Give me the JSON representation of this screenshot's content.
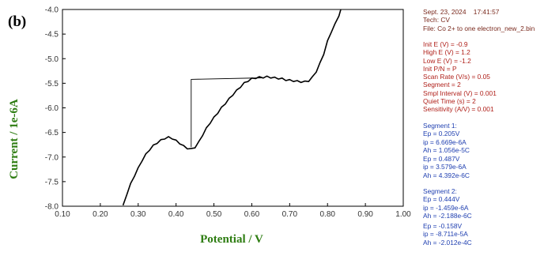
{
  "panel_label": "(b)",
  "colors": {
    "axis_label": "#2e7d12",
    "panel_label": "#000000",
    "tick_text": "#333333",
    "header_text": "#7a2a1e",
    "params_text": "#b0201a",
    "segment_text": "#1f3fb0",
    "trace": "#000000"
  },
  "info": {
    "header": [
      "Sept. 23, 2024    17:41:57",
      "Tech: CV",
      "File: Co 2+ to one electron_new_2.bin"
    ],
    "params": [
      "Init E (V) = -0.9",
      "High E (V) = 1.2",
      "Low E (V) = -1.2",
      "Init P/N = P",
      "Scan Rate (V/s) = 0.05",
      "Segment = 2",
      "Smpl Interval (V) = 0.001",
      "Quiet Time (s) = 2",
      "Sensitivity (A/V) = 0.001"
    ],
    "segment1": [
      "Segment 1:",
      "Ep = 0.205V",
      "ip = 6.669e-6A",
      "Ah = 1.056e-5C"
    ],
    "segment1b": [
      "Ep = 0.487V",
      "ip = 3.579e-6A",
      "Ah = 4.392e-6C"
    ],
    "segment2": [
      "Segment 2:",
      "Ep = 0.444V",
      "ip = -1.459e-6A",
      "Ah = -2.188e-6C"
    ],
    "segment2b": [
      "Ep = -0.158V",
      "ip = -8.711e-5A",
      "Ah = -2.012e-4C"
    ]
  },
  "chart_data": {
    "type": "line",
    "xlabel": "Potential / V",
    "ylabel": "Current / 1e-6A",
    "xlim": [
      0.1,
      1.0
    ],
    "ylim": [
      -8.0,
      -4.0
    ],
    "x_ticks": [
      "0.10",
      "0.20",
      "0.30",
      "0.40",
      "0.50",
      "0.60",
      "0.70",
      "0.80",
      "0.90",
      "1.00"
    ],
    "y_ticks": [
      "-4.0",
      "-4.5",
      "-5.0",
      "-5.5",
      "-6.0",
      "-6.5",
      "-7.0",
      "-7.5",
      "-8.0"
    ],
    "grid": false,
    "series": [
      {
        "x": [
          0.26,
          0.27,
          0.28,
          0.29,
          0.3,
          0.31,
          0.32,
          0.33,
          0.34,
          0.35,
          0.36,
          0.37,
          0.38,
          0.39,
          0.4,
          0.41,
          0.42,
          0.43,
          0.44,
          0.45,
          0.46,
          0.47,
          0.48,
          0.49,
          0.5,
          0.51,
          0.52,
          0.53,
          0.54,
          0.55,
          0.56,
          0.57,
          0.58,
          0.59,
          0.6,
          0.61,
          0.62,
          0.63,
          0.64,
          0.65,
          0.66,
          0.67,
          0.68,
          0.69,
          0.7,
          0.71,
          0.72,
          0.73,
          0.74,
          0.75,
          0.76,
          0.77,
          0.78,
          0.79,
          0.8,
          0.81,
          0.82,
          0.83,
          0.835
        ],
        "y": [
          -7.98,
          -7.75,
          -7.55,
          -7.38,
          -7.23,
          -7.07,
          -6.95,
          -6.85,
          -6.77,
          -6.71,
          -6.66,
          -6.62,
          -6.6,
          -6.62,
          -6.67,
          -6.72,
          -6.78,
          -6.82,
          -6.84,
          -6.8,
          -6.7,
          -6.55,
          -6.42,
          -6.3,
          -6.2,
          -6.1,
          -6.0,
          -5.91,
          -5.82,
          -5.73,
          -5.65,
          -5.57,
          -5.5,
          -5.45,
          -5.41,
          -5.39,
          -5.38,
          -5.38,
          -5.37,
          -5.38,
          -5.39,
          -5.4,
          -5.41,
          -5.43,
          -5.44,
          -5.45,
          -5.46,
          -5.47,
          -5.47,
          -5.45,
          -5.38,
          -5.26,
          -5.1,
          -4.9,
          -4.65,
          -4.45,
          -4.3,
          -4.12,
          -4.0
        ]
      },
      {
        "x": [
          0.44,
          0.44,
          0.63
        ],
        "y": [
          -6.8,
          -5.42,
          -5.39
        ]
      }
    ]
  }
}
